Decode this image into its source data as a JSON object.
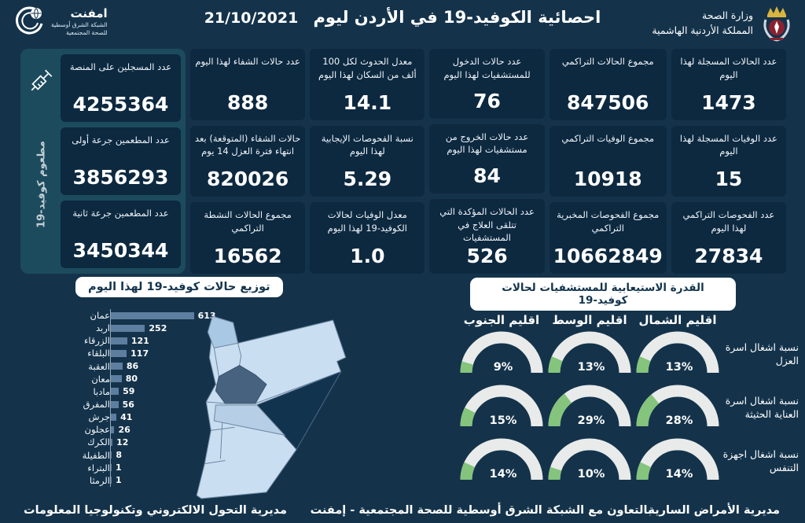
{
  "colors": {
    "background": "#14334b",
    "card": "#0d2940",
    "vaccine_panel": "#1d4b5e",
    "bar": "#5d7e9f",
    "gauge_fill": "#84c47c",
    "gauge_track": "#e8ebea",
    "map_light": "#cadef2",
    "map_medium": "#a9c8e4",
    "map_slate": "#46627f",
    "map_dark": "#12334e",
    "title_box_text": "#13344d"
  },
  "header": {
    "ministry_line1": "وزارة الصحة",
    "ministry_line2": "المملكة الأردنية الهاشمية",
    "title": "احصائية الكوفيد-19 في الأردن ليوم",
    "date": "21/10/2021",
    "emphnet_name": "امفنت",
    "emphnet_line1": "الشبكة الشرق أوسطية",
    "emphnet_line2": "للصحة المجتمعية"
  },
  "stats": {
    "columns": [
      {
        "cards": [
          {
            "label": "عدد الحالات المسجلة لهذا اليوم",
            "value": "1473"
          },
          {
            "label": "عدد الوفيات المسجلة لهذا اليوم",
            "value": "15"
          },
          {
            "label": "عدد الفحوصات التراكمي لهذا اليوم",
            "value": "27834"
          }
        ]
      },
      {
        "cards": [
          {
            "label": "مجموع الحالات التراكمي",
            "value": "847506"
          },
          {
            "label": "مجموع الوفيات التراكمي",
            "value": "10918"
          },
          {
            "label": "مجموع الفحوصات المخبرية التراكمي",
            "value": "10662849"
          }
        ]
      },
      {
        "cards": [
          {
            "label": "عدد حالات الدخول للمستشفيات لهذا اليوم",
            "value": "76"
          },
          {
            "label": "عدد حالات الخروج من مستشفيات لهذا اليوم",
            "value": "84"
          },
          {
            "label": "عدد الحالات المؤكدة التي تتلقى العلاج في المستشفيات",
            "value": "526"
          }
        ]
      },
      {
        "cards": [
          {
            "label": "معدل الحدوث لكل 100 ألف من السكان لهذا اليوم",
            "value": "14.1"
          },
          {
            "label": "نسبة الفحوصات الإيجابية لهذا اليوم",
            "value": "5.29"
          },
          {
            "label": "معدل الوفيات لحالات الكوفيد-19 لهذا اليوم",
            "value": "1.0"
          }
        ]
      },
      {
        "cards": [
          {
            "label": "عدد حالات الشفاء لهذا اليوم",
            "value": "888"
          },
          {
            "label": "حالات الشفاء (المتوقعة) بعد انتهاء فترة العزل 14 يوم",
            "value": "820026"
          },
          {
            "label": "مجموع الحالات النشطة التراكمي",
            "value": "16562"
          }
        ]
      }
    ],
    "vaccine": {
      "vertical_label": "مطعوم كوفيد-19",
      "cards": [
        {
          "label": "عدد المسجلين على المنصة",
          "value": "4255364"
        },
        {
          "label": "عدد المطعمين جرعة أولى",
          "value": "3856293"
        },
        {
          "label": "عدد المطعمين جرعة ثانية",
          "value": "3450344"
        }
      ]
    }
  },
  "chart_data": [
    {
      "type": "bar",
      "orientation": "horizontal",
      "title": "توزيع حالات كوفيد-19 لهذا اليوم",
      "categories": [
        "عمان",
        "اربد",
        "الزرقاء",
        "البلقاء",
        "العقبة",
        "معان",
        "مادبا",
        "المفرق",
        "جرش",
        "عجلون",
        "الكرك",
        "الطفيلة",
        "البتراء",
        "الرمثا"
      ],
      "values": [
        613,
        252,
        121,
        117,
        86,
        80,
        59,
        56,
        41,
        26,
        12,
        8,
        1,
        1
      ],
      "xlim": [
        0,
        650
      ],
      "bar_color": "#5d7e9f"
    },
    {
      "type": "gauge-grid",
      "title": "القدرة الاستيعابية للمستشفيات لحالات كوفيد-19",
      "regions": [
        "اقليم الشمال",
        "اقليم الوسط",
        "اقليم الجنوب"
      ],
      "rows": [
        {
          "label": "نسبة اشغال اسرة العزل",
          "values": [
            13,
            13,
            9
          ]
        },
        {
          "label": "نسبة اشغال اسرة العناية الحثيثة",
          "values": [
            28,
            29,
            15
          ]
        },
        {
          "label": "نسبة اشغال اجهزة التنفس",
          "values": [
            14,
            10,
            14
          ]
        }
      ],
      "unit": "%",
      "fill_color": "#84c47c",
      "track_color": "#e8ebea"
    }
  ],
  "footer": {
    "right": "مديرية الأمراض السارية",
    "center": "بالتعاون مع الشبكة الشرق أوسطية للصحة المجتمعية - إمفنت",
    "left": "مديرية التحول الالكتروني وتكنولوجيا المعلومات"
  }
}
